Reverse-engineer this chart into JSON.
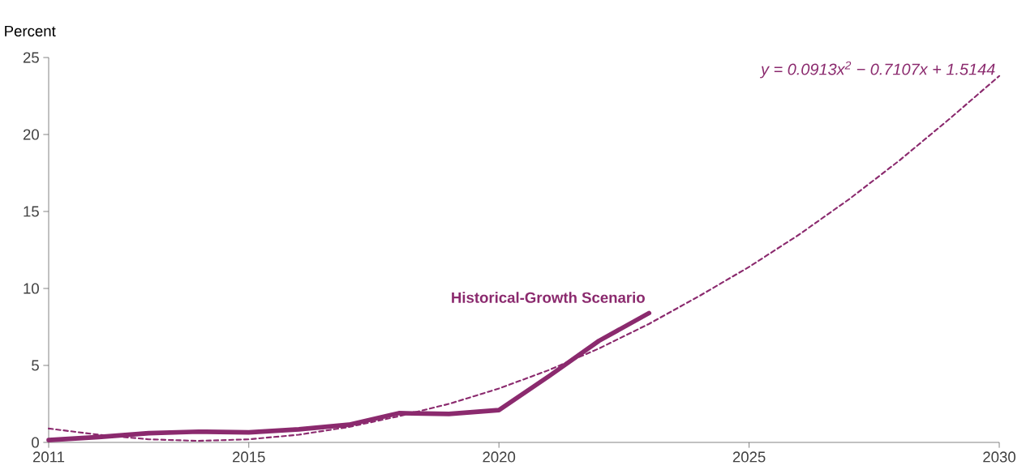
{
  "chart_data": {
    "type": "line",
    "ylabel": "Percent",
    "xlim": [
      2011,
      2030
    ],
    "xticks": [
      2011,
      2015,
      2020,
      2025,
      2030
    ],
    "ylim": [
      0,
      25
    ],
    "yticks": [
      0,
      5,
      10,
      15,
      20,
      25
    ],
    "annotations": [
      "y = 0.0913x$^{2}$ − 0.7107x + 1.5144"
    ],
    "series": [
      {
        "name": "Historical-Growth Scenario",
        "color": "#8b2a6e",
        "line_style": "solid",
        "x": [
          2011,
          2012,
          2013,
          2014,
          2015,
          2016,
          2017,
          2018,
          2019,
          2020,
          2021,
          2022,
          2023
        ],
        "values": [
          0.15,
          0.35,
          0.6,
          0.7,
          0.65,
          0.85,
          1.15,
          1.9,
          1.85,
          2.1,
          4.3,
          6.6,
          8.4
        ]
      },
      {
        "type": "line",
        "color": "#8b2a6e",
        "line_style": "dashed",
        "x": [
          2011,
          2012,
          2013,
          2014,
          2015,
          2016,
          2017,
          2018,
          2019,
          2020,
          2021,
          2022,
          2023,
          2024,
          2025,
          2026,
          2027,
          2028,
          2029,
          2030
        ],
        "values": [
          0.9,
          0.5,
          0.2,
          0.1,
          0.2,
          0.5,
          1.0,
          1.7,
          2.5,
          3.5,
          4.7,
          6.1,
          7.7,
          9.5,
          11.4,
          13.5,
          15.8,
          18.3,
          21.0,
          23.8
        ]
      }
    ]
  }
}
